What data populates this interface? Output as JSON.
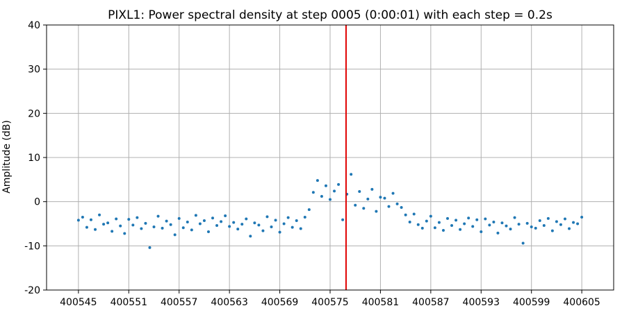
{
  "chart_data": {
    "type": "scatter",
    "title": "PIXL1: Power spectral density at step 0005 (0:00:01) with each step = 0.2s",
    "xlabel": "",
    "ylabel": "Amplitude (dB)",
    "xlim": [
      400541.2,
      400608.8
    ],
    "ylim": [
      -20,
      40
    ],
    "xticks": [
      400545,
      400551,
      400557,
      400563,
      400569,
      400575,
      400581,
      400587,
      400593,
      400599,
      400605
    ],
    "yticks": [
      -20,
      -10,
      0,
      10,
      20,
      30,
      40
    ],
    "grid": true,
    "marker_line_x": 400576.9,
    "colors": {
      "points": "#1f77b4",
      "marker_line": "#e00000",
      "grid": "#b0b0b0"
    },
    "series": [
      {
        "x": [
          400545.0,
          400545.5,
          400546.0,
          400546.5,
          400547.0,
          400547.5,
          400548.0,
          400548.5,
          400549.0,
          400549.5,
          400550.0,
          400550.5,
          400551.0,
          400551.5,
          400552.0,
          400552.5,
          400553.0,
          400553.5,
          400554.0,
          400554.5,
          400555.0,
          400555.5,
          400556.0,
          400556.5,
          400557.0,
          400557.5,
          400558.0,
          400558.5,
          400559.0,
          400559.5,
          400560.0,
          400560.5,
          400561.0,
          400561.5,
          400562.0,
          400562.5,
          400563.0,
          400563.5,
          400564.0,
          400564.5,
          400565.0,
          400565.5,
          400566.0,
          400566.5,
          400567.0,
          400567.5,
          400568.0,
          400568.5,
          400569.0,
          400569.5,
          400570.0,
          400570.5,
          400571.0,
          400571.5,
          400572.0,
          400572.5,
          400573.0,
          400573.5,
          400574.0,
          400574.5,
          400575.0,
          400575.5,
          400576.0,
          400576.5,
          400577.0,
          400577.5,
          400578.0,
          400578.5,
          400579.0,
          400579.5,
          400580.0,
          400580.5,
          400581.0,
          400581.5,
          400582.0,
          400582.5,
          400583.0,
          400583.5,
          400584.0,
          400584.5,
          400585.0,
          400585.5,
          400586.0,
          400586.5,
          400587.0,
          400587.5,
          400588.0,
          400588.5,
          400589.0,
          400589.5,
          400590.0,
          400590.5,
          400591.0,
          400591.5,
          400592.0,
          400592.5,
          400593.0,
          400593.5,
          400594.0,
          400594.5,
          400595.0,
          400595.5,
          400596.0,
          400596.5,
          400597.0,
          400597.5,
          400598.0,
          400598.5,
          400599.0,
          400599.5,
          400600.0,
          400600.5,
          400601.0,
          400601.5,
          400602.0,
          400602.5,
          400603.0,
          400603.5,
          400604.0,
          400604.5,
          400605.0
        ],
        "y": [
          -4.2,
          -3.5,
          -5.8,
          -4.1,
          -6.3,
          -3.0,
          -5.1,
          -4.8,
          -6.7,
          -3.9,
          -5.5,
          -7.2,
          -4.0,
          -5.3,
          -3.6,
          -6.1,
          -4.9,
          -10.4,
          -5.7,
          -3.3,
          -6.0,
          -4.4,
          -5.2,
          -7.5,
          -3.8,
          -5.9,
          -4.6,
          -6.4,
          -3.1,
          -5.0,
          -4.3,
          -6.8,
          -3.7,
          -5.4,
          -4.5,
          -3.2,
          -5.6,
          -4.7,
          -6.2,
          -5.1,
          -3.9,
          -7.8,
          -4.8,
          -5.3,
          -6.6,
          -3.4,
          -5.7,
          -4.2,
          -6.9,
          -5.0,
          -3.6,
          -5.8,
          -4.3,
          -6.1,
          -3.5,
          -1.8,
          2.1,
          4.8,
          1.2,
          3.6,
          0.5,
          2.4,
          3.9,
          -4.1,
          1.7,
          6.2,
          -0.8,
          2.3,
          -1.5,
          0.6,
          2.8,
          -2.2,
          1.0,
          0.8,
          -1.1,
          1.9,
          -0.5,
          -1.3,
          -3.0,
          -4.6,
          -2.8,
          -5.2,
          -6.0,
          -4.4,
          -3.3,
          -5.9,
          -4.7,
          -6.5,
          -3.8,
          -5.4,
          -4.2,
          -6.3,
          -5.0,
          -3.7,
          -5.6,
          -4.1,
          -6.8,
          -3.9,
          -5.3,
          -4.6,
          -7.1,
          -4.8,
          -5.5,
          -6.2,
          -3.6,
          -5.1,
          -9.4,
          -4.9,
          -5.7,
          -6.0,
          -4.3,
          -5.4,
          -3.8,
          -6.6,
          -4.5,
          -5.2,
          -3.9,
          -6.1,
          -4.7,
          -5.0,
          -3.5
        ]
      }
    ]
  }
}
